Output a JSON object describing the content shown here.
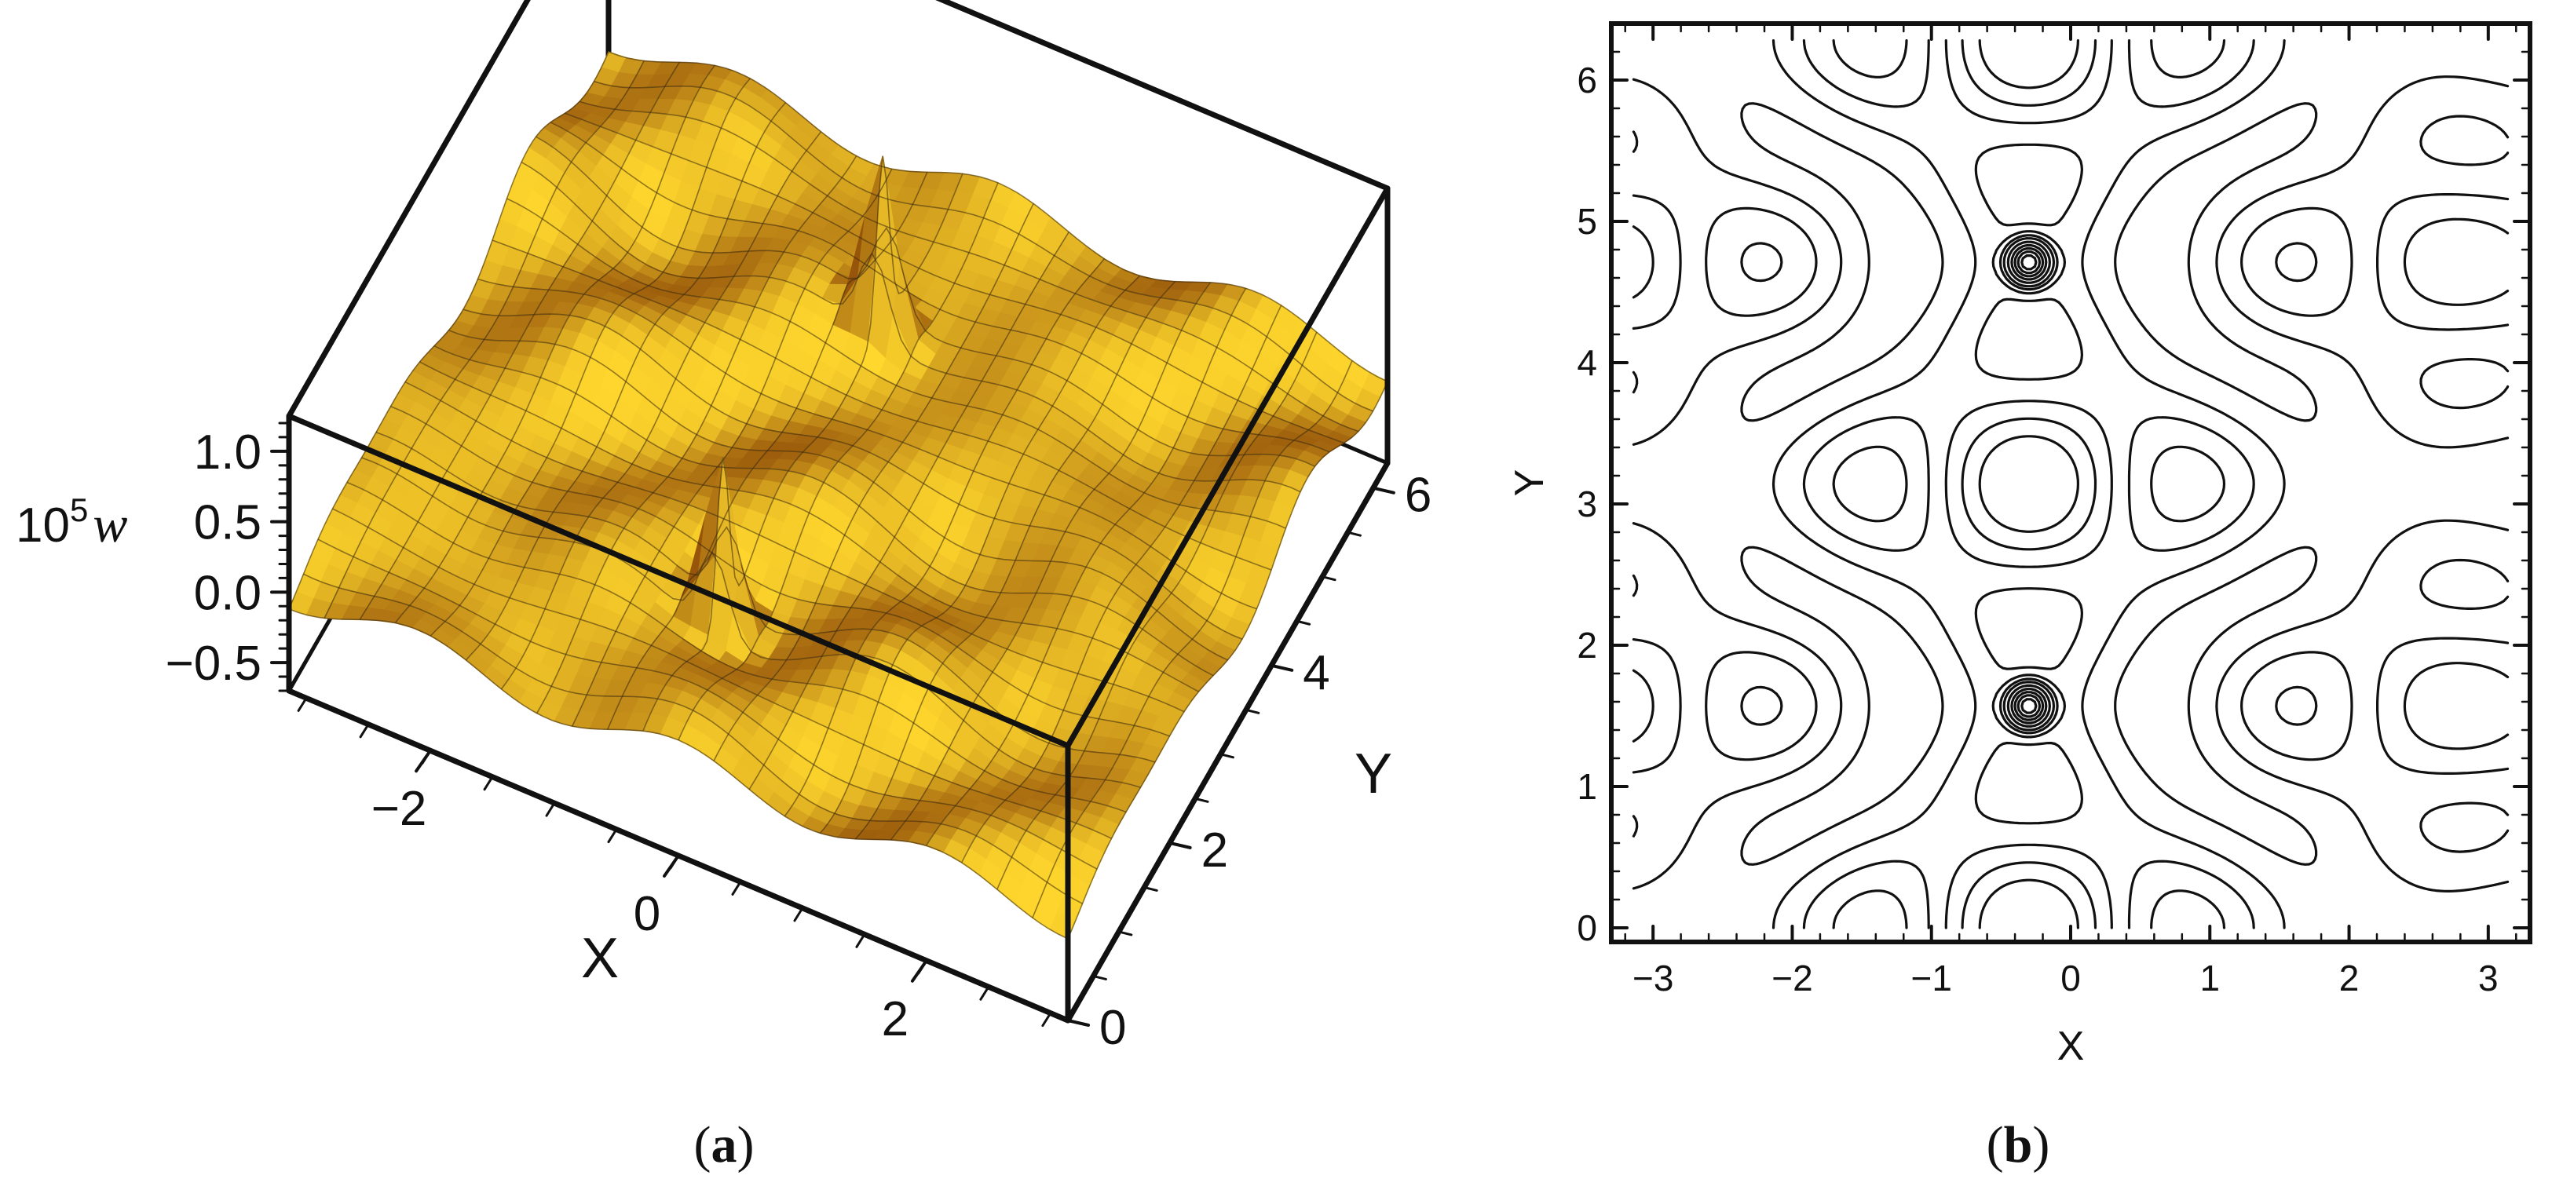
{
  "chart_data": [
    {
      "type": "surface3d",
      "panel_label": "a",
      "xlabel": "X",
      "ylabel": "Y",
      "zlabel_prefix": "10",
      "zlabel_power": "5",
      "zlabel_var": "w",
      "x_range": [
        -3.14,
        3.14
      ],
      "y_range": [
        0,
        6.28
      ],
      "z_range": [
        -0.7,
        1.25
      ],
      "x_ticks": [
        "−2",
        "0",
        "2"
      ],
      "y_ticks": [
        "0",
        "2",
        "4",
        "6"
      ],
      "z_ticks": [
        "1.0",
        "0.5",
        "0.0",
        "−0.5"
      ],
      "surface_color": "#f3a91c",
      "mesh": "on",
      "box": "on",
      "peaks": [
        {
          "x": -0.3,
          "y": 1.57,
          "z": 1.2
        },
        {
          "x": -0.3,
          "y": 4.71,
          "z": 1.2
        }
      ]
    },
    {
      "type": "contour",
      "panel_label": "b",
      "xlabel": "X",
      "ylabel": "Y",
      "x_range": [
        -3.3,
        3.3
      ],
      "y_range": [
        -0.1,
        6.4
      ],
      "x_ticks": [
        "−3",
        "−2",
        "−1",
        "0",
        "1",
        "2",
        "3"
      ],
      "y_ticks": [
        "0",
        "1",
        "2",
        "3",
        "4",
        "5",
        "6"
      ],
      "line_color": "#111111",
      "centers": [
        {
          "x": -0.3,
          "y": 1.57
        },
        {
          "x": -0.3,
          "y": 4.71
        }
      ]
    }
  ]
}
